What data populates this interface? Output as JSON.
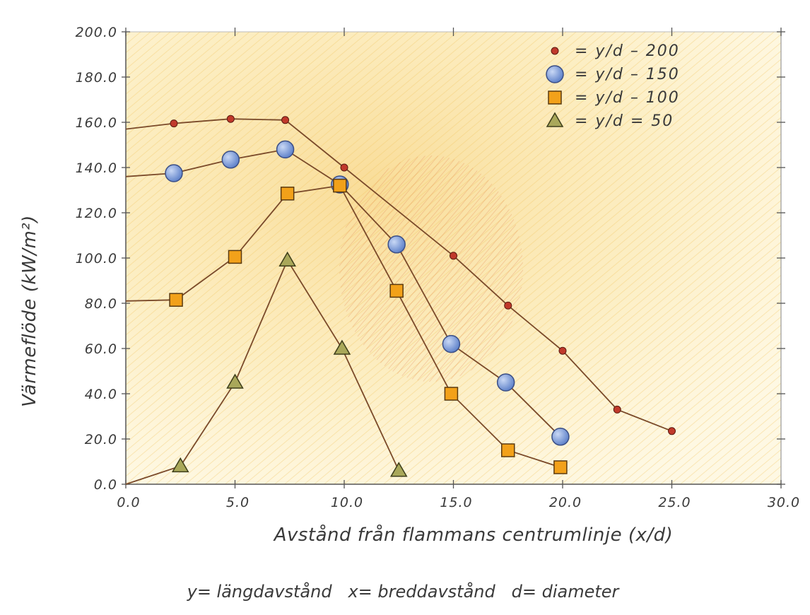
{
  "chart_data": {
    "type": "line",
    "xlabel": "Avstånd från flammans centrumlinje (x/d)",
    "ylabel": "Värmeflöde (kW/m²)",
    "xlim": [
      0,
      30
    ],
    "ylim": [
      0,
      200
    ],
    "x_ticks": [
      "0.0",
      "5.0",
      "10.0",
      "15.0",
      "20.0",
      "25.0",
      "30.0"
    ],
    "y_ticks": [
      "0.0",
      "20.0",
      "40.0",
      "60.0",
      "80.0",
      "100.0",
      "120.0",
      "140.0",
      "160.0",
      "180.0",
      "200.0"
    ],
    "grid": false,
    "legend_position": "top-right",
    "series": [
      {
        "name": "y/d – 200",
        "marker": "small-circle",
        "color": "#c0392b",
        "points": [
          [
            0,
            157
          ],
          [
            2.2,
            159.5
          ],
          [
            4.8,
            161.5
          ],
          [
            7.3,
            161
          ],
          [
            10,
            140
          ],
          [
            15,
            101
          ],
          [
            17.5,
            79
          ],
          [
            20,
            59
          ],
          [
            22.5,
            33
          ],
          [
            25,
            23.5
          ]
        ]
      },
      {
        "name": "y/d – 150",
        "marker": "circle",
        "color": "#5a7ec8",
        "points": [
          [
            0,
            136
          ],
          [
            2.2,
            137.5
          ],
          [
            4.8,
            143.5
          ],
          [
            7.3,
            148
          ],
          [
            9.8,
            132.5
          ],
          [
            12.4,
            106
          ],
          [
            14.9,
            62
          ],
          [
            17.4,
            45
          ],
          [
            19.9,
            21
          ]
        ]
      },
      {
        "name": "y/d – 100",
        "marker": "square",
        "color": "#f2a11a",
        "points": [
          [
            0,
            81
          ],
          [
            2.3,
            81.5
          ],
          [
            5,
            100.5
          ],
          [
            7.4,
            128.5
          ],
          [
            9.8,
            132
          ],
          [
            12.4,
            85.5
          ],
          [
            14.9,
            40
          ],
          [
            17.5,
            15
          ],
          [
            19.9,
            7.5
          ]
        ]
      },
      {
        "name": "y/d = 50",
        "marker": "triangle",
        "color": "#a9a85a",
        "points": [
          [
            0,
            0
          ],
          [
            2.5,
            8
          ],
          [
            5,
            45
          ],
          [
            7.4,
            99
          ],
          [
            9.9,
            60
          ],
          [
            12.5,
            6
          ]
        ]
      }
    ],
    "footnote": "y= längdavstånd   x= breddavstånd   d= diameter"
  },
  "colors": {
    "background_paper": "#fffef7",
    "shading_yellow": "#f6da86",
    "shading_orange": "#e89a6a",
    "line": "#7a4a2a",
    "axis": "#555555"
  }
}
